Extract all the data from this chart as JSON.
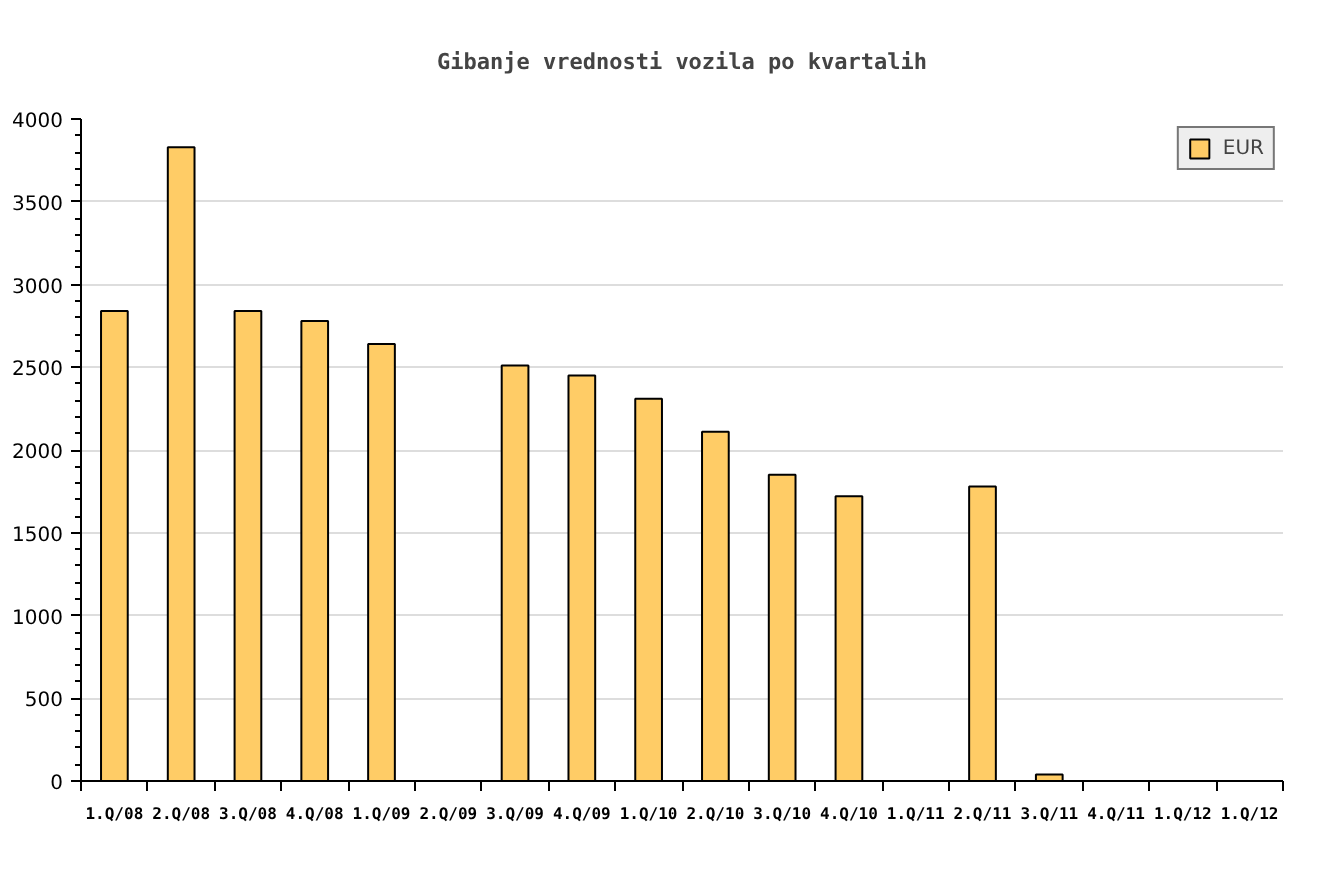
{
  "chart_data": {
    "type": "bar",
    "title": "Gibanje vrednosti vozila po kvartalih",
    "categories": [
      "1.Q/08",
      "2.Q/08",
      "3.Q/08",
      "4.Q/08",
      "1.Q/09",
      "2.Q/09",
      "3.Q/09",
      "4.Q/09",
      "1.Q/10",
      "2.Q/10",
      "3.Q/10",
      "4.Q/10",
      "1.Q/11",
      "2.Q/11",
      "3.Q/11",
      "4.Q/11",
      "1.Q/12",
      "1.Q/12"
    ],
    "series": [
      {
        "name": "EUR",
        "color": "#ffcc66",
        "values": [
          2840,
          3830,
          2840,
          2780,
          2640,
          null,
          2510,
          2450,
          2310,
          2110,
          1850,
          1720,
          null,
          1780,
          40,
          null,
          null,
          null
        ]
      }
    ],
    "ylim": [
      0,
      4000
    ],
    "yticks": [
      0,
      {
        "value": 100,
        "label": null
      },
      {
        "value": 200,
        "label": null
      },
      {
        "value": 300,
        "label": null
      },
      {
        "value": 400,
        "label": null
      },
      500,
      {
        "value": 600,
        "label": null
      },
      {
        "value": 700,
        "label": null
      },
      {
        "value": 800,
        "label": null
      },
      {
        "value": 900,
        "label": null
      },
      1000,
      {
        "value": 1100,
        "label": null
      },
      {
        "value": 1200,
        "label": null
      },
      {
        "value": 1300,
        "label": null
      },
      {
        "value": 1400,
        "label": null
      },
      1500,
      {
        "value": 1600,
        "label": null
      },
      {
        "value": 1700,
        "label": null
      },
      {
        "value": 1800,
        "label": null
      },
      {
        "value": 1900,
        "label": null
      },
      2000,
      {
        "value": 2100,
        "label": null
      },
      {
        "value": 2200,
        "label": null
      },
      {
        "value": 2300,
        "label": null
      },
      {
        "value": 2400,
        "label": null
      },
      2500,
      {
        "value": 2600,
        "label": null
      },
      {
        "value": 2700,
        "label": null
      },
      {
        "value": 2800,
        "label": null
      },
      {
        "value": 2900,
        "label": null
      },
      3000,
      {
        "value": 3100,
        "label": null
      },
      {
        "value": 3200,
        "label": null
      },
      {
        "value": 3300,
        "label": null
      },
      {
        "value": 3400,
        "label": null
      },
      3500,
      {
        "value": 3600,
        "label": null
      },
      {
        "value": 3700,
        "label": null
      },
      {
        "value": 3800,
        "label": null
      },
      {
        "value": 3900,
        "label": null
      },
      4000
    ],
    "grid": "y",
    "legend": "top right"
  }
}
